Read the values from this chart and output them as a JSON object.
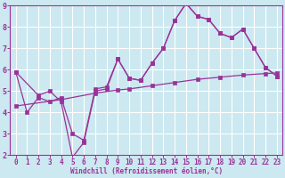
{
  "background_color": "#cce8f0",
  "grid_color": "#ffffff",
  "line_color": "#993399",
  "xlabel": "Windchill (Refroidissement éolien,°C)",
  "xlim": [
    -0.5,
    23.5
  ],
  "ylim": [
    2,
    9
  ],
  "xticks": [
    0,
    1,
    2,
    3,
    4,
    5,
    6,
    7,
    8,
    9,
    10,
    11,
    12,
    13,
    14,
    15,
    16,
    17,
    18,
    19,
    20,
    21,
    22,
    23
  ],
  "yticks": [
    2,
    3,
    4,
    5,
    6,
    7,
    8,
    9
  ],
  "line1_x": [
    0,
    1,
    2,
    3,
    4,
    5,
    6,
    7,
    8,
    9,
    10,
    11,
    12,
    13,
    14,
    15,
    16,
    17,
    18,
    19,
    20,
    21,
    22,
    23
  ],
  "line1_y": [
    5.9,
    4.0,
    4.7,
    4.5,
    4.7,
    3.0,
    2.7,
    5.1,
    5.2,
    6.5,
    5.6,
    5.5,
    6.3,
    7.0,
    8.3,
    9.1,
    8.5,
    8.35,
    7.7,
    7.5,
    7.9,
    7.0,
    6.1,
    5.7
  ],
  "line2_x": [
    0,
    2,
    3,
    4,
    5,
    6,
    7,
    8,
    9,
    10,
    11,
    12,
    13,
    14,
    15,
    16,
    17,
    18,
    19,
    20,
    21,
    22,
    23
  ],
  "line2_y": [
    5.9,
    4.8,
    5.0,
    4.5,
    1.9,
    2.6,
    5.0,
    5.1,
    6.5,
    5.6,
    5.5,
    6.3,
    7.0,
    8.3,
    9.1,
    8.5,
    8.35,
    7.7,
    7.5,
    7.9,
    7.0,
    6.1,
    5.7
  ],
  "line3_x": [
    0,
    4,
    7,
    9,
    10,
    12,
    14,
    16,
    18,
    20,
    22,
    23
  ],
  "line3_y": [
    4.3,
    4.6,
    4.9,
    5.05,
    5.1,
    5.25,
    5.4,
    5.55,
    5.65,
    5.75,
    5.82,
    5.85
  ]
}
